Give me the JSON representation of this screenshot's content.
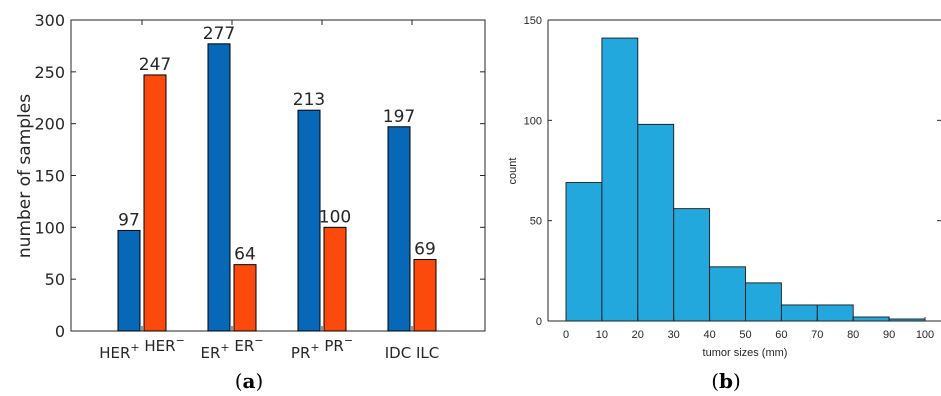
{
  "chart_data": [
    {
      "type": "bar",
      "ylabel": "number of samples",
      "ylim": [
        0,
        300
      ],
      "yticks": [
        0,
        50,
        100,
        150,
        200,
        250,
        300
      ],
      "groups": [
        {
          "labels": [
            {
              "base": "HER",
              "sup": "+"
            },
            {
              "base": "HER",
              "sup": "−"
            }
          ],
          "values": [
            97,
            247
          ],
          "value_labels": [
            "97",
            "247"
          ]
        },
        {
          "labels": [
            {
              "base": "ER",
              "sup": "+"
            },
            {
              "base": "ER",
              "sup": "−"
            }
          ],
          "values": [
            277,
            64
          ],
          "value_labels": [
            "277",
            "64"
          ]
        },
        {
          "labels": [
            {
              "base": "PR",
              "sup": "+"
            },
            {
              "base": "PR",
              "sup": "−"
            }
          ],
          "values": [
            213,
            100
          ],
          "value_labels": [
            "213",
            "100"
          ]
        },
        {
          "labels": [
            {
              "base": "IDC",
              "sup": ""
            },
            {
              "base": "ILC",
              "sup": ""
            }
          ],
          "values": [
            197,
            69
          ],
          "value_labels": [
            "197",
            "69"
          ]
        }
      ],
      "colors": [
        "#0868b8",
        "#fb4a0c"
      ],
      "caption": {
        "prefix": "(",
        "letter": "a",
        "suffix": ")"
      }
    },
    {
      "type": "histogram",
      "xlabel": "tumor sizes (mm)",
      "ylabel": "count",
      "xlim": [
        0,
        100
      ],
      "ylim": [
        0,
        150
      ],
      "xticks": [
        0,
        10,
        20,
        30,
        40,
        50,
        60,
        70,
        80,
        90,
        100
      ],
      "yticks": [
        0,
        50,
        100,
        150
      ],
      "bins": [
        {
          "x0": 0,
          "x1": 10,
          "count": 69
        },
        {
          "x0": 10,
          "x1": 20,
          "count": 141
        },
        {
          "x0": 20,
          "x1": 30,
          "count": 98
        },
        {
          "x0": 30,
          "x1": 40,
          "count": 56
        },
        {
          "x0": 40,
          "x1": 50,
          "count": 27
        },
        {
          "x0": 50,
          "x1": 60,
          "count": 19
        },
        {
          "x0": 60,
          "x1": 70,
          "count": 8
        },
        {
          "x0": 70,
          "x1": 80,
          "count": 8
        },
        {
          "x0": 80,
          "x1": 90,
          "count": 2
        },
        {
          "x0": 90,
          "x1": 100,
          "count": 1
        }
      ],
      "color": "#22a8dc",
      "caption": {
        "prefix": "(",
        "letter": "b",
        "suffix": ")"
      }
    }
  ]
}
